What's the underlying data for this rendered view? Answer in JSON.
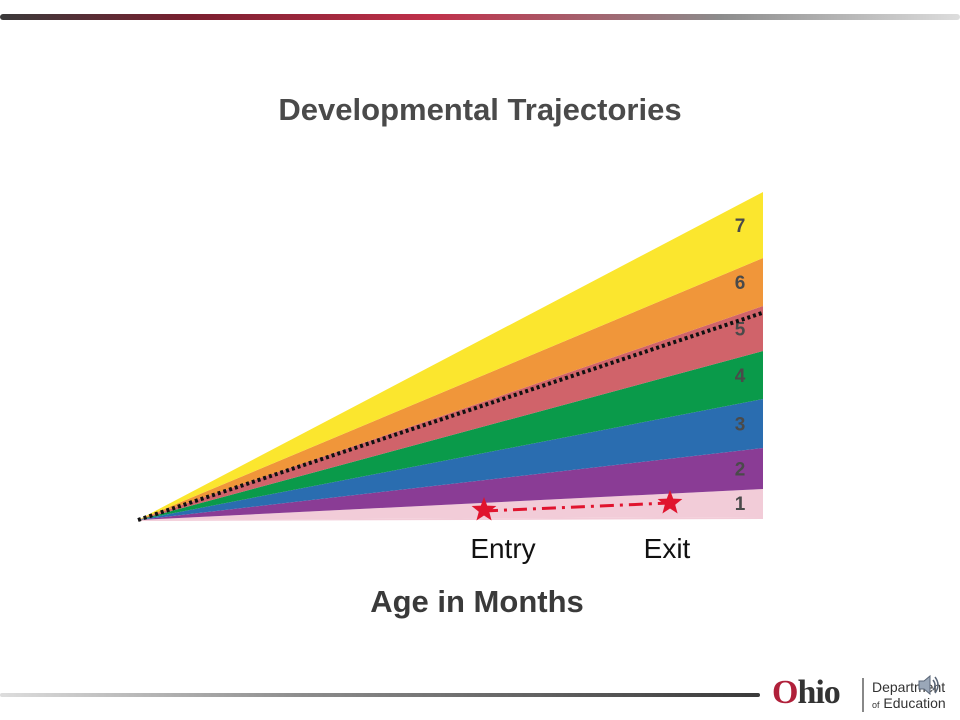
{
  "slide": {
    "title": "Developmental Trajectories",
    "x_axis_label": "Age in Months"
  },
  "bands": [
    {
      "label": "1",
      "color": "#f2ccd8"
    },
    {
      "label": "2",
      "color": "#8a3c95"
    },
    {
      "label": "3",
      "color": "#2a6db0"
    },
    {
      "label": "4",
      "color": "#0a9a4a"
    },
    {
      "label": "5",
      "color": "#d0636a"
    },
    {
      "label": "6",
      "color": "#f0963a"
    },
    {
      "label": "7",
      "color": "#fbe62e"
    }
  ],
  "markers": {
    "entry_label": "Entry",
    "exit_label": "Exit",
    "color": "#e0142e"
  },
  "reference_line_color": "#111111",
  "logo": {
    "name_first": "O",
    "name_rest": "hio",
    "department_line1": "Department",
    "department_of": "of",
    "department_line2": "Education"
  },
  "icons": {
    "audio": "speaker-icon"
  }
}
